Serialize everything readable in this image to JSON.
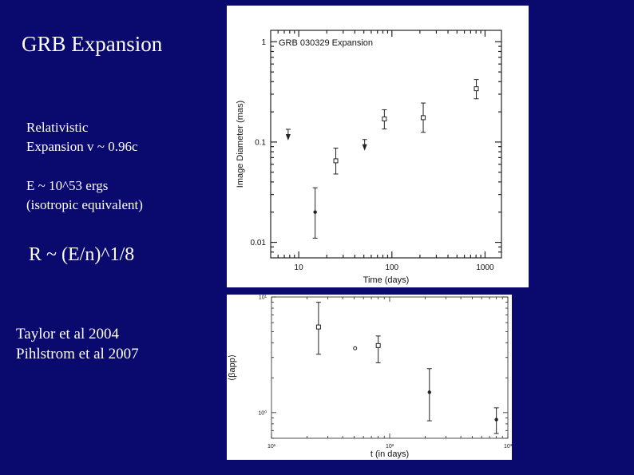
{
  "slide": {
    "title": "GRB  Expansion",
    "bullet1_line1": "Relativistic",
    "bullet1_line2": "Expansion v ~ 0.96c",
    "bullet2_line1": "E ~ 10^53 ergs",
    "bullet2_line2": "(isotropic equivalent)",
    "scaling": "R ~ (E/n)^1/8",
    "ref1": "Taylor et al 2004",
    "ref2": "Pihlstrom et al 2007",
    "background_color": "#0a0a6e",
    "text_color": "#ffffff"
  },
  "chart_data": [
    {
      "type": "scatter",
      "title": "GRB 030329 Expansion",
      "xlabel": "Time (days)",
      "ylabel": "Image Diameter (mas)",
      "xscale": "log",
      "yscale": "log",
      "xlim": [
        5,
        1500
      ],
      "ylim": [
        0.007,
        1.3
      ],
      "xticks": [
        10,
        100,
        1000
      ],
      "xtick_labels": [
        "10",
        "100",
        "1000"
      ],
      "yticks": [
        0.01,
        0.1,
        1
      ],
      "ytick_labels": [
        "0.01",
        "0.1",
        "1"
      ],
      "points": [
        {
          "x": 15,
          "y": 0.02,
          "ylo": 0.011,
          "yhi": 0.035,
          "marker": "dot"
        },
        {
          "x": 25,
          "y": 0.065,
          "ylo": 0.048,
          "yhi": 0.087,
          "marker": "square"
        },
        {
          "x": 83,
          "y": 0.17,
          "ylo": 0.135,
          "yhi": 0.21,
          "marker": "square"
        },
        {
          "x": 217,
          "y": 0.175,
          "ylo": 0.125,
          "yhi": 0.245,
          "marker": "square"
        },
        {
          "x": 806,
          "y": 0.34,
          "ylo": 0.27,
          "yhi": 0.42,
          "marker": "square"
        }
      ],
      "upper_limits": [
        {
          "x": 7.7,
          "y": 0.12
        },
        {
          "x": 51,
          "y": 0.095
        }
      ]
    },
    {
      "type": "scatter",
      "xlabel": "t (in days)",
      "ylabel": "⟨βapp⟩",
      "xscale": "log",
      "yscale": "log",
      "xlim": [
        10,
        1000
      ],
      "ylim": [
        0.6,
        10
      ],
      "xticks": [
        10,
        100,
        1000
      ],
      "xtick_labels": [
        "10¹",
        "10²",
        "10³"
      ],
      "yticks": [
        1,
        10
      ],
      "ytick_labels": [
        "10⁰",
        "10¹"
      ],
      "points": [
        {
          "x": 25,
          "y": 5.5,
          "ylo": 3.2,
          "yhi": 9.0,
          "marker": "square"
        },
        {
          "x": 51,
          "y": 3.6,
          "ylo": 3.6,
          "yhi": 3.6,
          "marker": "open-circle"
        },
        {
          "x": 80,
          "y": 3.8,
          "ylo": 2.7,
          "yhi": 4.6,
          "marker": "square"
        },
        {
          "x": 217,
          "y": 1.5,
          "ylo": 0.85,
          "yhi": 2.4,
          "marker": "dot"
        },
        {
          "x": 800,
          "y": 0.87,
          "ylo": 0.66,
          "yhi": 1.1,
          "marker": "dot"
        }
      ]
    }
  ]
}
